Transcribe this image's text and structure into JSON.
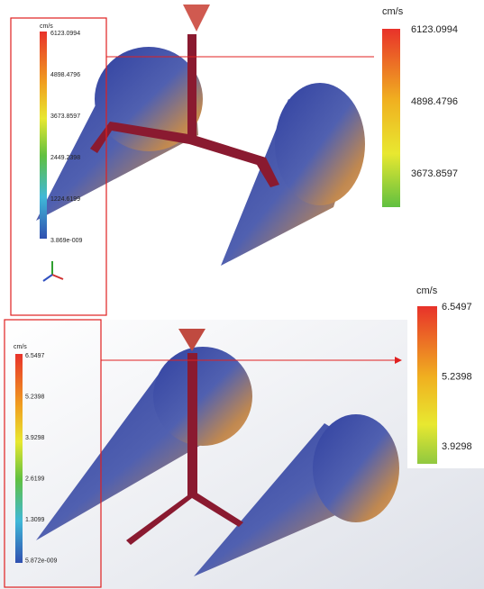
{
  "panels": [
    {
      "legend": {
        "unit": "cm/s",
        "labels": [
          "6123.0994",
          "4898.4796",
          "3673.8597",
          "2449.2398",
          "1224.6199",
          "3.869e-009"
        ]
      },
      "zoom": {
        "unit": "cm/s",
        "labels": [
          "6123.0994",
          "4898.4796",
          "3673.8597"
        ]
      }
    },
    {
      "legend": {
        "unit": "cm/s",
        "labels": [
          "6.5497",
          "5.2398",
          "3.9298",
          "2.6199",
          "1.3099",
          "5.872e-009"
        ]
      },
      "zoom": {
        "unit": "cm/s",
        "labels": [
          "6.5497",
          "5.2398",
          "3.9298"
        ]
      }
    }
  ]
}
